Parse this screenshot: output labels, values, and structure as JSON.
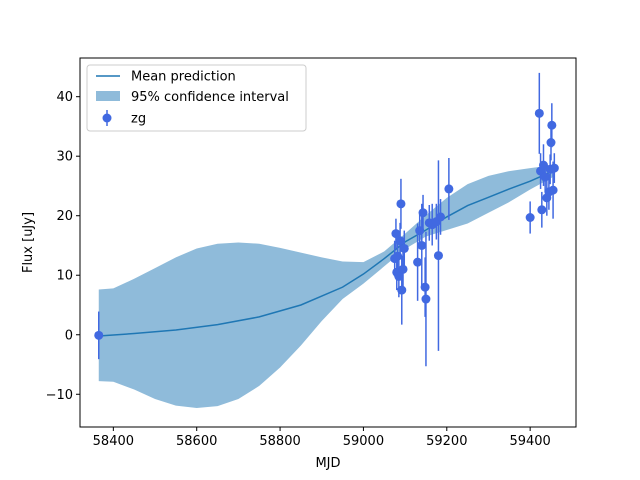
{
  "chart_data": {
    "type": "scatter",
    "xlabel": "MJD",
    "ylabel": "Flux [uJy]",
    "xlim": [
      58320,
      59510
    ],
    "ylim": [
      -15.5,
      46.5
    ],
    "x_ticks": [
      58400,
      58600,
      58800,
      59000,
      59200,
      59400
    ],
    "x_tick_labels": [
      "58400",
      "58600",
      "58800",
      "59000",
      "59200",
      "59400"
    ],
    "y_ticks": [
      -10,
      0,
      10,
      20,
      30,
      40
    ],
    "y_tick_labels": [
      "−10",
      "0",
      "10",
      "20",
      "30",
      "40"
    ],
    "grid": false,
    "legend_position": "upper-left",
    "legend": [
      {
        "label": "Mean prediction",
        "kind": "line"
      },
      {
        "label": "95% confidence interval",
        "kind": "patch"
      },
      {
        "label": "zg",
        "kind": "errorbar"
      }
    ],
    "colors": {
      "mean": "#1f77b4",
      "band": "#8fbbda",
      "points": "#4169e1"
    },
    "mean_prediction": {
      "x": [
        58365,
        58450,
        58550,
        58650,
        58750,
        58850,
        58950,
        59000,
        59050,
        59100,
        59150,
        59200,
        59250,
        59300,
        59350,
        59400,
        59455
      ],
      "y": [
        -0.2,
        0.2,
        0.8,
        1.7,
        3.0,
        5.0,
        8.0,
        10.2,
        12.8,
        15.6,
        17.6,
        19.8,
        21.7,
        23.1,
        24.5,
        25.8,
        27.5
      ]
    },
    "confidence_interval": {
      "x": [
        58365,
        58400,
        58450,
        58500,
        58550,
        58600,
        58650,
        58700,
        58750,
        58800,
        58850,
        58900,
        58950,
        59000,
        59050,
        59100,
        59150,
        59200,
        59250,
        59300,
        59350,
        59400,
        59455
      ],
      "lower": [
        -7.8,
        -7.9,
        -9.2,
        -10.8,
        -11.9,
        -12.3,
        -12.0,
        -10.8,
        -8.6,
        -5.5,
        -1.8,
        2.3,
        6.0,
        8.6,
        11.5,
        14.4,
        16.5,
        17.6,
        18.7,
        20.5,
        22.3,
        24.4,
        26.5
      ],
      "upper": [
        7.6,
        7.8,
        9.4,
        11.2,
        13.0,
        14.5,
        15.3,
        15.5,
        15.3,
        14.6,
        13.8,
        13.0,
        12.3,
        12.2,
        14.0,
        17.0,
        20.1,
        23.0,
        25.3,
        26.7,
        27.5,
        28.0,
        28.5
      ]
    },
    "series": [
      {
        "name": "zg",
        "points": [
          {
            "x": 58365,
            "y": -0.1,
            "err": 4.0
          },
          {
            "x": 59075,
            "y": 12.8,
            "err": 3.0
          },
          {
            "x": 59078,
            "y": 17.0,
            "err": 2.5
          },
          {
            "x": 59080,
            "y": 10.5,
            "err": 3.0
          },
          {
            "x": 59082,
            "y": 13.2,
            "err": 3.0
          },
          {
            "x": 59085,
            "y": 9.8,
            "err": 3.5
          },
          {
            "x": 59088,
            "y": 15.8,
            "err": 3.0
          },
          {
            "x": 59090,
            "y": 22.0,
            "err": 4.2
          },
          {
            "x": 59092,
            "y": 7.5,
            "err": 5.8
          },
          {
            "x": 59095,
            "y": 11.0,
            "err": 3.0
          },
          {
            "x": 59098,
            "y": 14.5,
            "err": 3.0
          },
          {
            "x": 59130,
            "y": 12.2,
            "err": 6.5
          },
          {
            "x": 59135,
            "y": 17.5,
            "err": 3.0
          },
          {
            "x": 59140,
            "y": 15.0,
            "err": 7.0
          },
          {
            "x": 59143,
            "y": 20.5,
            "err": 3.0
          },
          {
            "x": 59148,
            "y": 8.0,
            "err": 5.0
          },
          {
            "x": 59150,
            "y": 6.0,
            "err": 11.3
          },
          {
            "x": 59158,
            "y": 18.8,
            "err": 3.0
          },
          {
            "x": 59165,
            "y": 18.5,
            "err": 3.5
          },
          {
            "x": 59175,
            "y": 19.0,
            "err": 3.0
          },
          {
            "x": 59180,
            "y": 13.3,
            "err": 16.0
          },
          {
            "x": 59185,
            "y": 19.8,
            "err": 3.0
          },
          {
            "x": 59205,
            "y": 24.5,
            "err": 5.2
          },
          {
            "x": 59400,
            "y": 19.7,
            "err": 2.7
          },
          {
            "x": 59422,
            "y": 37.2,
            "err": 6.8
          },
          {
            "x": 59425,
            "y": 27.5,
            "err": 3.0
          },
          {
            "x": 59428,
            "y": 21.0,
            "err": 3.0
          },
          {
            "x": 59432,
            "y": 28.5,
            "err": 3.5
          },
          {
            "x": 59436,
            "y": 26.5,
            "err": 2.5
          },
          {
            "x": 59440,
            "y": 23.0,
            "err": 3.0
          },
          {
            "x": 59445,
            "y": 24.0,
            "err": 3.0
          },
          {
            "x": 59448,
            "y": 27.8,
            "err": 2.5
          },
          {
            "x": 59450,
            "y": 32.3,
            "err": 3.0
          },
          {
            "x": 59452,
            "y": 35.2,
            "err": 3.7
          },
          {
            "x": 59455,
            "y": 24.3,
            "err": 4.8
          },
          {
            "x": 59458,
            "y": 28.0,
            "err": 2.5
          }
        ]
      }
    ]
  }
}
